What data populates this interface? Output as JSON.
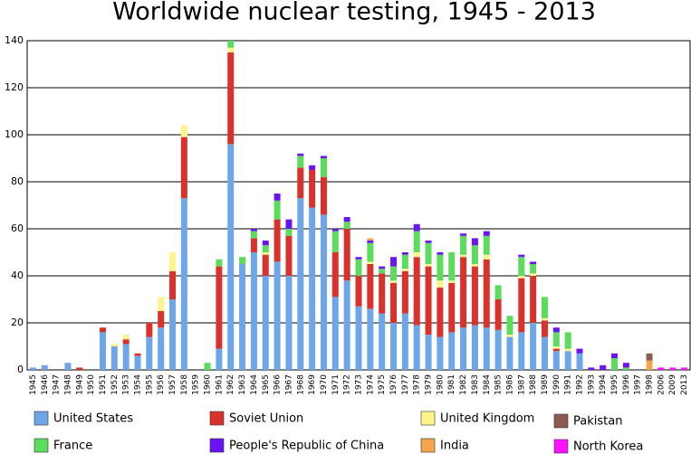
{
  "chart_data": {
    "type": "stacked-bar",
    "title": "Worldwide nuclear testing, 1945 - 2013",
    "categories": [
      "1945",
      "1946",
      "1947",
      "1948",
      "1949",
      "1950",
      "1951",
      "1952",
      "1953",
      "1954",
      "1955",
      "1956",
      "1957",
      "1958",
      "1959",
      "1960",
      "1961",
      "1962",
      "1963",
      "1964",
      "1965",
      "1966",
      "1967",
      "1968",
      "1969",
      "1970",
      "1971",
      "1972",
      "1973",
      "1974",
      "1975",
      "1976",
      "1977",
      "1978",
      "1979",
      "1980",
      "1981",
      "1982",
      "1983",
      "1984",
      "1985",
      "1986",
      "1987",
      "1988",
      "1989",
      "1990",
      "1991",
      "1992",
      "1993",
      "1994",
      "1995",
      "1996",
      "1997",
      "1998",
      "2006",
      "2009",
      "2013"
    ],
    "series": [
      {
        "name": "United States",
        "color": "#6ea6ea",
        "values": [
          1,
          2,
          0,
          3,
          0,
          0,
          16,
          10,
          11,
          6,
          14,
          18,
          30,
          73,
          0,
          0,
          9,
          96,
          45,
          50,
          40,
          46,
          40,
          73,
          69,
          66,
          31,
          38,
          27,
          26,
          24,
          20,
          24,
          19,
          15,
          14,
          16,
          18,
          19,
          18,
          17,
          14,
          16,
          20,
          14,
          8,
          8,
          7,
          0,
          0,
          0,
          0,
          0,
          0,
          0,
          0,
          0
        ]
      },
      {
        "name": "Soviet Union",
        "color": "#d9322d",
        "values": [
          0,
          0,
          0,
          0,
          1,
          0,
          2,
          0,
          2,
          1,
          6,
          7,
          12,
          26,
          0,
          0,
          35,
          39,
          0,
          6,
          9,
          18,
          17,
          13,
          16,
          16,
          19,
          22,
          13,
          19,
          17,
          17,
          18,
          29,
          29,
          21,
          21,
          30,
          25,
          29,
          13,
          0,
          23,
          20,
          7,
          1,
          0,
          0,
          0,
          0,
          0,
          0,
          0,
          0,
          0,
          0,
          0
        ]
      },
      {
        "name": "United Kingdom",
        "color": "#fff48a",
        "values": [
          0,
          0,
          0,
          0,
          0,
          0,
          0,
          1,
          2,
          0,
          0,
          6,
          8,
          5,
          0,
          0,
          0,
          2,
          0,
          0,
          1,
          0,
          0,
          0,
          0,
          0,
          0,
          0,
          0,
          1,
          0,
          1,
          1,
          2,
          1,
          3,
          1,
          1,
          1,
          2,
          0,
          1,
          1,
          1,
          1,
          1,
          1,
          0,
          0,
          0,
          0,
          0,
          0,
          0,
          0,
          0,
          0
        ]
      },
      {
        "name": "France",
        "color": "#5bdc5b",
        "values": [
          0,
          0,
          0,
          0,
          0,
          0,
          0,
          0,
          0,
          0,
          0,
          0,
          0,
          0,
          0,
          3,
          3,
          3,
          3,
          3,
          3,
          8,
          3,
          5,
          0,
          8,
          9,
          3,
          7,
          8,
          2,
          6,
          6,
          9,
          9,
          11,
          12,
          8,
          8,
          8,
          6,
          8,
          8,
          4,
          9,
          6,
          7,
          0,
          0,
          0,
          5,
          1,
          0,
          0,
          0,
          0,
          0
        ]
      },
      {
        "name": "People's Republic of China",
        "color": "#6a13f5",
        "values": [
          0,
          0,
          0,
          0,
          0,
          0,
          0,
          0,
          0,
          0,
          0,
          0,
          0,
          0,
          0,
          0,
          0,
          0,
          0,
          1,
          2,
          3,
          4,
          1,
          2,
          1,
          1,
          2,
          1,
          1,
          1,
          4,
          1,
          3,
          1,
          1,
          0,
          1,
          3,
          2,
          0,
          0,
          1,
          1,
          0,
          2,
          0,
          2,
          1,
          2,
          2,
          2,
          0,
          0,
          0,
          0,
          0
        ]
      },
      {
        "name": "India",
        "color": "#f5a54a",
        "values": [
          0,
          0,
          0,
          0,
          0,
          0,
          0,
          0,
          0,
          0,
          0,
          0,
          0,
          0,
          0,
          0,
          0,
          0,
          0,
          0,
          0,
          0,
          0,
          0,
          0,
          0,
          0,
          0,
          0,
          1,
          0,
          0,
          0,
          0,
          0,
          0,
          0,
          0,
          0,
          0,
          0,
          0,
          0,
          0,
          0,
          0,
          0,
          0,
          0,
          0,
          0,
          0,
          0,
          4,
          0,
          0,
          0
        ]
      },
      {
        "name": "Pakistan",
        "color": "#8c5a52",
        "values": [
          0,
          0,
          0,
          0,
          0,
          0,
          0,
          0,
          0,
          0,
          0,
          0,
          0,
          0,
          0,
          0,
          0,
          0,
          0,
          0,
          0,
          0,
          0,
          0,
          0,
          0,
          0,
          0,
          0,
          0,
          0,
          0,
          0,
          0,
          0,
          0,
          0,
          0,
          0,
          0,
          0,
          0,
          0,
          0,
          0,
          0,
          0,
          0,
          0,
          0,
          0,
          0,
          0,
          3,
          0,
          0,
          0
        ]
      },
      {
        "name": "North Korea",
        "color": "#ff10ff",
        "values": [
          0,
          0,
          0,
          0,
          0,
          0,
          0,
          0,
          0,
          0,
          0,
          0,
          0,
          0,
          0,
          0,
          0,
          0,
          0,
          0,
          0,
          0,
          0,
          0,
          0,
          0,
          0,
          0,
          0,
          0,
          0,
          0,
          0,
          0,
          0,
          0,
          0,
          0,
          0,
          0,
          0,
          0,
          0,
          0,
          0,
          0,
          0,
          0,
          0,
          0,
          0,
          0,
          0,
          0,
          1,
          1,
          1
        ]
      }
    ],
    "ylim": [
      0,
      140
    ],
    "yticks": [
      0,
      20,
      40,
      60,
      80,
      100,
      120,
      140
    ],
    "grid": true
  }
}
